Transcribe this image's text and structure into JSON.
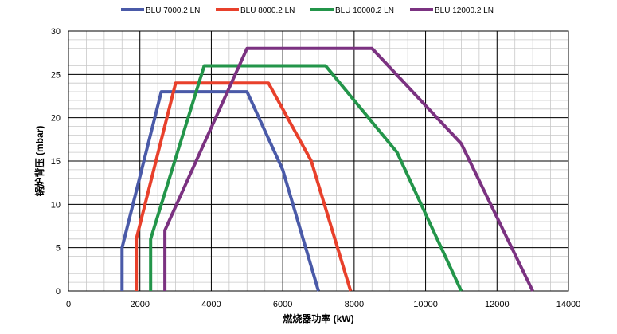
{
  "chart_data": {
    "type": "line",
    "title": "",
    "xlabel": "燃烧器功率 (kW)",
    "ylabel": "锅炉背压 (mbar)",
    "xlim": [
      0,
      14000
    ],
    "ylim": [
      0,
      30
    ],
    "x_ticks": [
      "0",
      "2000",
      "4000",
      "6000",
      "8000",
      "10000",
      "12000",
      "14000"
    ],
    "y_ticks": [
      "0",
      "5",
      "10",
      "15",
      "20",
      "25",
      "30"
    ],
    "grid": true,
    "legend_position": "top",
    "series": [
      {
        "name": "BLU 7000.2 LN",
        "color": "#4a5aa8",
        "points": [
          [
            1500,
            0
          ],
          [
            1500,
            5
          ],
          [
            2600,
            23
          ],
          [
            5000,
            23
          ],
          [
            6000,
            14
          ],
          [
            7000,
            0
          ]
        ]
      },
      {
        "name": "BLU 8000.2 LN",
        "color": "#e8402b",
        "points": [
          [
            1900,
            0
          ],
          [
            1900,
            6
          ],
          [
            3000,
            24
          ],
          [
            5600,
            24
          ],
          [
            6800,
            15
          ],
          [
            7900,
            0
          ]
        ]
      },
      {
        "name": "BLU 10000.2 LN",
        "color": "#23954a",
        "points": [
          [
            2300,
            0
          ],
          [
            2300,
            6
          ],
          [
            3800,
            26
          ],
          [
            7200,
            26
          ],
          [
            9200,
            16
          ],
          [
            11000,
            0
          ]
        ]
      },
      {
        "name": "BLU 12000.2 LN",
        "color": "#7b3281",
        "points": [
          [
            2700,
            0
          ],
          [
            2700,
            7
          ],
          [
            5000,
            28
          ],
          [
            8500,
            28
          ],
          [
            11000,
            17
          ],
          [
            13000,
            0
          ]
        ]
      }
    ]
  }
}
